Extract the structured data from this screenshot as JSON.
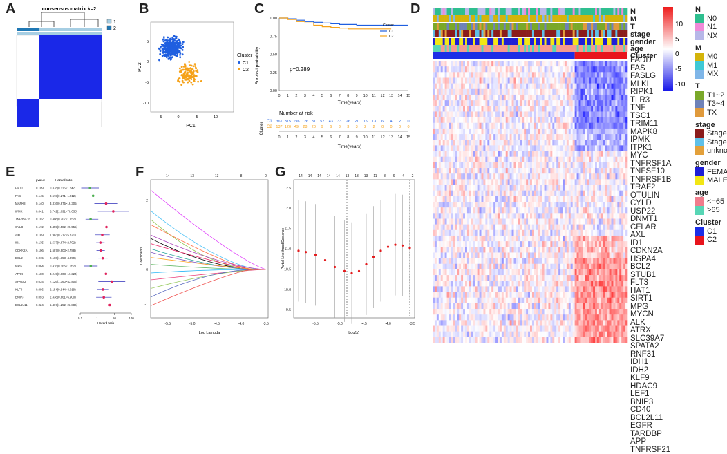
{
  "panels": {
    "A": "A",
    "B": "B",
    "C": "C",
    "D": "D",
    "E": "E",
    "F": "F",
    "G": "G"
  },
  "panelA": {
    "title": "consensus matrix k=2",
    "legend": [
      "1",
      "2"
    ]
  },
  "panelB": {
    "xlabel": "PC1",
    "ylabel": "PC2",
    "legend_title": "Cluster",
    "legend": [
      "C1",
      "C2"
    ],
    "xticks": [
      "-5",
      "0",
      "5",
      "10"
    ],
    "yticks": [
      "5",
      "0",
      "-5",
      "-10"
    ]
  },
  "panelC": {
    "ylabel": "Survival probability",
    "xlabel": "Time(years)",
    "pvalue": "p=0.289",
    "legend_title": "Cluster",
    "legend": [
      "C1",
      "C2"
    ],
    "yticks": [
      "1.00",
      "0.75",
      "0.50",
      "0.25",
      "0.00"
    ],
    "xticks": [
      "0",
      "1",
      "2",
      "3",
      "4",
      "5",
      "6",
      "7",
      "8",
      "9",
      "10",
      "11",
      "12",
      "13",
      "14",
      "15"
    ],
    "risk_title": "Number at risk",
    "risk_ylabel": "Cluster",
    "risk_xlabel": "Time(years)",
    "risk_rows": [
      {
        "label": "C1",
        "values": [
          "361",
          "315",
          "196",
          "126",
          "81",
          "57",
          "43",
          "33",
          "26",
          "21",
          "15",
          "13",
          "6",
          "4",
          "2",
          "0"
        ]
      },
      {
        "label": "C2",
        "values": [
          "137",
          "120",
          "49",
          "28",
          "20",
          "9",
          "6",
          "3",
          "3",
          "3",
          "2",
          "2",
          "0",
          "0",
          "0",
          "0"
        ]
      }
    ]
  },
  "panelD": {
    "annotations": [
      "N",
      "M",
      "T",
      "stage",
      "gender",
      "age",
      "Cluster"
    ],
    "genes": [
      "FADD",
      "FAS",
      "FASLG",
      "MLKL",
      "RIPK1",
      "TLR3",
      "TNF",
      "TSC1",
      "TRIM11",
      "MAPK8",
      "IPMK",
      "ITPK1",
      "MYC",
      "TNFRSF1A",
      "TNFSF10",
      "TNFRSF1B",
      "TRAF2",
      "OTULIN",
      "CYLD",
      "USP22",
      "DNMT1",
      "CFLAR",
      "AXL",
      "ID1",
      "CDKN2A",
      "HSPA4",
      "BCL2",
      "STUB1",
      "FLT3",
      "HAT1",
      "SIRT1",
      "MPG",
      "MYCN",
      "ALK",
      "ATRX",
      "SLC39A7",
      "SPATA2",
      "RNF31",
      "IDH1",
      "IDH2",
      "KLF9",
      "HDAC9",
      "LEF1",
      "BNIP3",
      "CD40",
      "BCL2L11",
      "EGFR",
      "TARDBP",
      "APP",
      "TNFRSF21"
    ],
    "scale": [
      "10",
      "5",
      "0",
      "-5",
      "-10"
    ],
    "legends": [
      {
        "title": "N",
        "items": [
          {
            "label": "N0",
            "color": "#2fbf8f"
          },
          {
            "label": "N1",
            "color": "#f08ad8"
          },
          {
            "label": "NX",
            "color": "#b7b7e8"
          }
        ]
      },
      {
        "title": "M",
        "items": [
          {
            "label": "M0",
            "color": "#d4b40a"
          },
          {
            "label": "M1",
            "color": "#3fc9d6"
          },
          {
            "label": "MX",
            "color": "#7fb6e8"
          }
        ]
      },
      {
        "title": "T",
        "items": [
          {
            "label": "T1~2",
            "color": "#7aa82a"
          },
          {
            "label": "T3~4",
            "color": "#6e82b8"
          },
          {
            "label": "TX",
            "color": "#e09a3c"
          }
        ]
      },
      {
        "title": "stage",
        "items": [
          {
            "label": "StageI~II",
            "color": "#8b1c1c"
          },
          {
            "label": "StageIII~IV",
            "color": "#5fc0e8"
          },
          {
            "label": "unknown",
            "color": "#e3a03a"
          }
        ]
      },
      {
        "title": "gender",
        "items": [
          {
            "label": "FEMALE",
            "color": "#1f1fd6"
          },
          {
            "label": "MALE",
            "color": "#f2e614"
          }
        ]
      },
      {
        "title": "age",
        "items": [
          {
            "label": "<=65",
            "color": "#f07c8c"
          },
          {
            "label": ">65",
            "color": "#57d6b5"
          }
        ]
      },
      {
        "title": "Cluster",
        "items": [
          {
            "label": "C1",
            "color": "#1c2ee6"
          },
          {
            "label": "C2",
            "color": "#e8141c"
          }
        ]
      }
    ]
  },
  "panelE": {
    "col_pvalue": "pvalue",
    "col_hr": "Hazard ratio",
    "xlabel": "Hazard ratio",
    "xticks": [
      "0.1",
      "1",
      "10",
      "100"
    ],
    "rows": [
      {
        "gene": "FADD",
        "p": "0.109",
        "hr": "0.378(0.115~1.242)",
        "est": 0.378,
        "lo": 0.115,
        "hi": 1.242
      },
      {
        "gene": "FAS",
        "p": "0.145",
        "hr": "0.573(0.271~1.212)",
        "est": 0.573,
        "lo": 0.271,
        "hi": 1.212
      },
      {
        "gene": "MAPK8",
        "p": "0.140",
        "hr": "3.316(0.675~16.305)",
        "est": 3.316,
        "lo": 0.675,
        "hi": 16.305
      },
      {
        "gene": "IPMK",
        "p": "0.041",
        "hr": "8.742(1.091~70.038)",
        "est": 8.742,
        "lo": 1.091,
        "hi": 70.038
      },
      {
        "gene": "TNFRSF1B",
        "p": "0.102",
        "hr": "0.408(0.207~1.152)",
        "est": 0.408,
        "lo": 0.207,
        "hi": 1.152
      },
      {
        "gene": "CYLD",
        "p": "0.172",
        "hr": "3.459(0.582~20.555)",
        "est": 3.459,
        "lo": 0.582,
        "hi": 20.555
      },
      {
        "gene": "AXL",
        "p": "0.189",
        "hr": "1.983(0.717~5.371)",
        "est": 1.983,
        "lo": 0.717,
        "hi": 5.371
      },
      {
        "gene": "ID1",
        "p": "0.135",
        "hr": "1.537(0.874~2.702)",
        "est": 1.537,
        "lo": 0.874,
        "hi": 2.702
      },
      {
        "gene": "CDKN2A",
        "p": "0.106",
        "hr": "1.587(0.903~2.788)",
        "est": 1.587,
        "lo": 0.903,
        "hi": 2.788
      },
      {
        "gene": "BCL2",
        "p": "0.015",
        "hr": "2.100(1.153~4.099)",
        "est": 2.1,
        "lo": 1.153,
        "hi": 4.099
      },
      {
        "gene": "MPG",
        "p": "0.064",
        "hr": "0.416(0.165~1.052)",
        "est": 0.416,
        "lo": 0.165,
        "hi": 1.052
      },
      {
        "gene": "ATRX",
        "p": "0.180",
        "hr": "3.249(0.608~17.324)",
        "est": 3.249,
        "lo": 0.608,
        "hi": 17.324
      },
      {
        "gene": "SPATA2",
        "p": "0.034",
        "hr": "7.126(1.160~43.803)",
        "est": 7.126,
        "lo": 1.16,
        "hi": 43.803
      },
      {
        "gene": "KLF9",
        "p": "0.086",
        "hr": "2.154(0.944~4.919)",
        "est": 2.154,
        "lo": 0.944,
        "hi": 4.919
      },
      {
        "gene": "BNIP3",
        "p": "0.093",
        "hr": "2.438(0.861~6.900)",
        "est": 2.438,
        "lo": 0.861,
        "hi": 6.9
      },
      {
        "gene": "BCL2L11",
        "p": "0.024",
        "hr": "5.467(1.252~23.886)",
        "est": 5.467,
        "lo": 1.252,
        "hi": 23.886
      }
    ]
  },
  "panelF": {
    "xlabel": "Log Lambda",
    "ylabel": "Coefficients",
    "xticks": [
      "-5.5",
      "-5.0",
      "-4.5",
      "-4.0",
      "-3.5"
    ],
    "yticks": [
      "2",
      "1",
      "0",
      "-1"
    ],
    "topticks": [
      "14",
      "13",
      "13",
      "8",
      "0"
    ]
  },
  "panelG": {
    "xlabel": "Log(λ)",
    "ylabel": "Partial Likelihood Deviance",
    "xticks": [
      "-5.5",
      "-5.0",
      "-4.5",
      "-4.0",
      "-3.5"
    ],
    "yticks": [
      "12.5",
      "12.0",
      "11.5",
      "11.0",
      "10.5",
      "10.0",
      "9.5"
    ],
    "topticks": [
      "14",
      "14",
      "14",
      "14",
      "14",
      "13",
      "13",
      "13",
      "11",
      "8",
      "6",
      "4",
      "2"
    ]
  },
  "chart_data": [
    {
      "type": "scatter",
      "title": "",
      "xlabel": "PC1",
      "ylabel": "PC2",
      "series": [
        {
          "name": "C1",
          "color": "#1f5fe0"
        },
        {
          "name": "C2",
          "color": "#f5a21a"
        }
      ],
      "xlim": [
        -8,
        16
      ],
      "ylim": [
        -11,
        7
      ]
    },
    {
      "type": "line",
      "title": "",
      "xlabel": "Time(years)",
      "ylabel": "Survival probability",
      "ylim": [
        0,
        1
      ],
      "xlim": [
        0,
        15
      ],
      "series": [
        {
          "name": "C1",
          "color": "#1f5fe0",
          "x": [
            0,
            1,
            2,
            3,
            4,
            5,
            6,
            7,
            8,
            9,
            10,
            11,
            12,
            13,
            14,
            15
          ],
          "y": [
            1.0,
            0.99,
            0.97,
            0.95,
            0.94,
            0.93,
            0.92,
            0.91,
            0.91,
            0.9,
            0.9,
            0.9,
            0.9,
            0.9,
            0.9,
            0.9
          ]
        },
        {
          "name": "C2",
          "color": "#f5a21a",
          "x": [
            0,
            1,
            2,
            3,
            4,
            5,
            6,
            7,
            8,
            9,
            10,
            11,
            12,
            13
          ],
          "y": [
            1.0,
            0.98,
            0.95,
            0.93,
            0.9,
            0.88,
            0.87,
            0.86,
            0.85,
            0.85,
            0.85,
            0.85,
            0.85,
            0.85
          ]
        }
      ]
    },
    {
      "type": "line",
      "title": "",
      "xlabel": "Log(λ)",
      "ylabel": "Partial Likelihood Deviance",
      "ylim": [
        9.3,
        12.7
      ],
      "series": [
        {
          "name": "deviance",
          "x": [
            -5.85,
            -5.7,
            -5.5,
            -5.3,
            -5.1,
            -4.9,
            -4.75,
            -4.6,
            -4.45,
            -4.3,
            -4.15,
            -4.0,
            -3.85,
            -3.7,
            -3.55
          ],
          "y": [
            10.95,
            10.92,
            10.85,
            10.72,
            10.55,
            10.45,
            10.4,
            10.45,
            10.62,
            10.8,
            10.95,
            11.05,
            11.1,
            11.08,
            11.02
          ]
        }
      ]
    }
  ]
}
